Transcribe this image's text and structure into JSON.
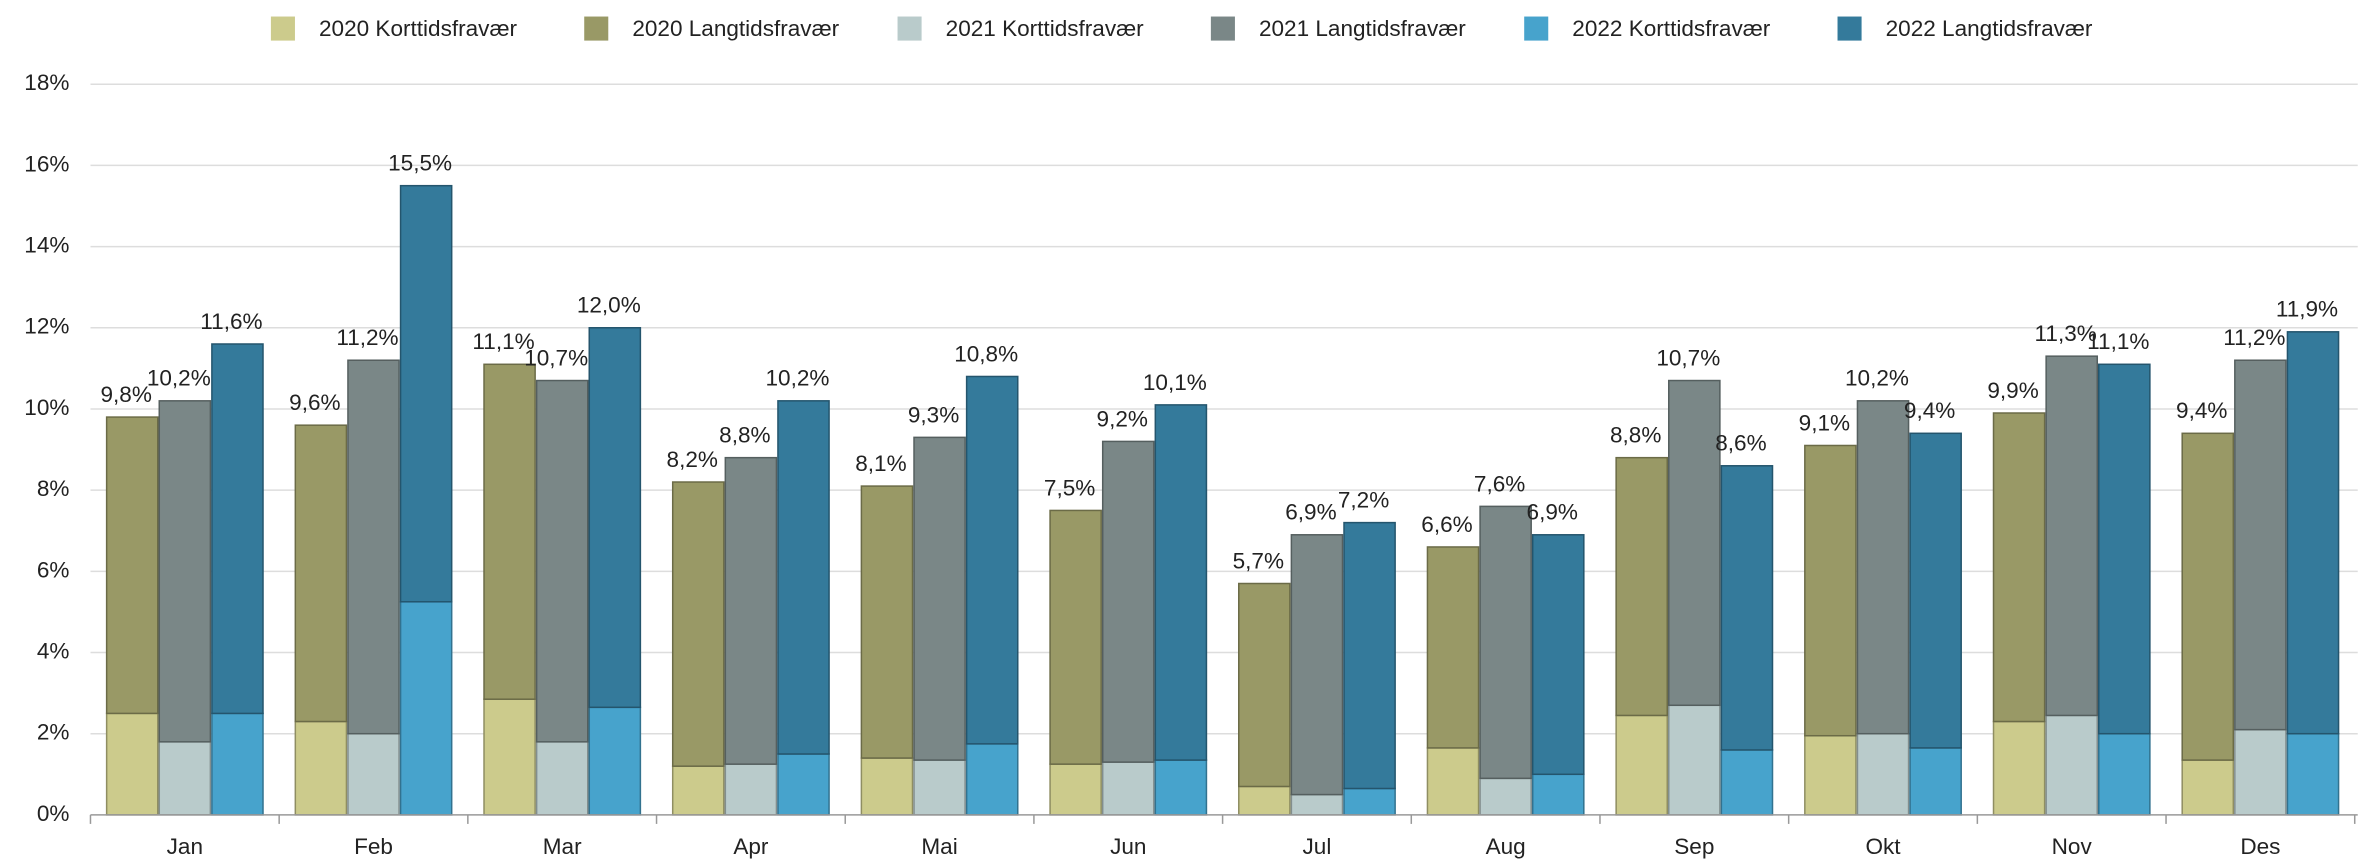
{
  "chart_data": {
    "type": "stacked_grouped_bar",
    "categories": [
      "Jan",
      "Feb",
      "Mar",
      "Apr",
      "Mai",
      "Jun",
      "Jul",
      "Aug",
      "Sep",
      "Okt",
      "Nov",
      "Des"
    ],
    "series": [
      {
        "name": "2020 Korttidsfravær",
        "stack": "2020",
        "color": "#cccb8c",
        "values": [
          2.5,
          2.3,
          2.85,
          1.2,
          1.4,
          1.25,
          0.7,
          1.65,
          2.45,
          1.95,
          2.3,
          1.35
        ]
      },
      {
        "name": "2020 Langtidsfravær",
        "stack": "2020",
        "color": "#999966",
        "values": [
          7.3,
          7.3,
          8.25,
          7.0,
          6.7,
          6.25,
          5.0,
          4.95,
          6.35,
          7.15,
          7.6,
          8.05
        ]
      },
      {
        "name": "2021 Korttidsfravær",
        "stack": "2021",
        "color": "#b9cbcb",
        "values": [
          1.8,
          2.0,
          1.8,
          1.25,
          1.35,
          1.3,
          0.5,
          0.9,
          2.7,
          2.0,
          2.45,
          2.1
        ]
      },
      {
        "name": "2021 Langtidsfravær",
        "stack": "2021",
        "color": "#7a8787",
        "values": [
          8.4,
          9.2,
          8.9,
          7.55,
          7.95,
          7.9,
          6.4,
          6.7,
          8.0,
          8.2,
          8.85,
          9.1
        ]
      },
      {
        "name": "2022 Korttidsfravær",
        "stack": "2022",
        "color": "#47a3cc",
        "values": [
          2.5,
          5.25,
          2.65,
          1.5,
          1.75,
          1.35,
          0.65,
          1.0,
          1.6,
          1.65,
          2.0,
          2.0
        ]
      },
      {
        "name": "2022 Langtidsfravær",
        "stack": "2022",
        "color": "#347a9b",
        "values": [
          9.1,
          10.25,
          9.35,
          8.7,
          9.05,
          8.75,
          6.55,
          5.9,
          7.0,
          7.75,
          9.1,
          9.9
        ]
      }
    ],
    "totals": [
      {
        "stack": "2020",
        "values": [
          9.8,
          9.6,
          11.1,
          8.2,
          8.1,
          7.5,
          5.7,
          6.6,
          8.8,
          9.1,
          9.9,
          9.4
        ],
        "value_labels": [
          "9,8%",
          "9,6%",
          "11,1%",
          "8,2%",
          "8,1%",
          "7,5%",
          "5,7%",
          "6,6%",
          "8,8%",
          "9,1%",
          "9,9%",
          "9,4%"
        ]
      },
      {
        "stack": "2021",
        "values": [
          10.2,
          11.2,
          10.7,
          8.8,
          9.3,
          9.2,
          6.9,
          7.6,
          10.7,
          10.2,
          11.3,
          11.2
        ],
        "value_labels": [
          "10,2%",
          "11,2%",
          "10,7%",
          "8,8%",
          "9,3%",
          "9,2%",
          "6,9%",
          "7,6%",
          "10,7%",
          "10,2%",
          "11,3%",
          "11,2%"
        ]
      },
      {
        "stack": "2022",
        "values": [
          11.6,
          15.5,
          12.0,
          10.2,
          10.8,
          10.1,
          7.2,
          6.9,
          8.6,
          9.4,
          11.1,
          11.9
        ],
        "value_labels": [
          "11,6%",
          "15,5%",
          "12,0%",
          "10,2%",
          "10,8%",
          "10,1%",
          "7,2%",
          "6,9%",
          "8,6%",
          "9,4%",
          "11,1%",
          "11,9%"
        ]
      }
    ],
    "ylim": [
      0,
      18
    ],
    "yticks": [
      {
        "value": 0,
        "label": "0%"
      },
      {
        "value": 2,
        "label": "2%"
      },
      {
        "value": 4,
        "label": "4%"
      },
      {
        "value": 6,
        "label": "6%"
      },
      {
        "value": 8,
        "label": "8%"
      },
      {
        "value": 10,
        "label": "10%"
      },
      {
        "value": 12,
        "label": "12%"
      },
      {
        "value": 14,
        "label": "14%"
      },
      {
        "value": 16,
        "label": "16%"
      },
      {
        "value": 18,
        "label": "18%"
      }
    ],
    "grid": true,
    "legend": "top"
  }
}
